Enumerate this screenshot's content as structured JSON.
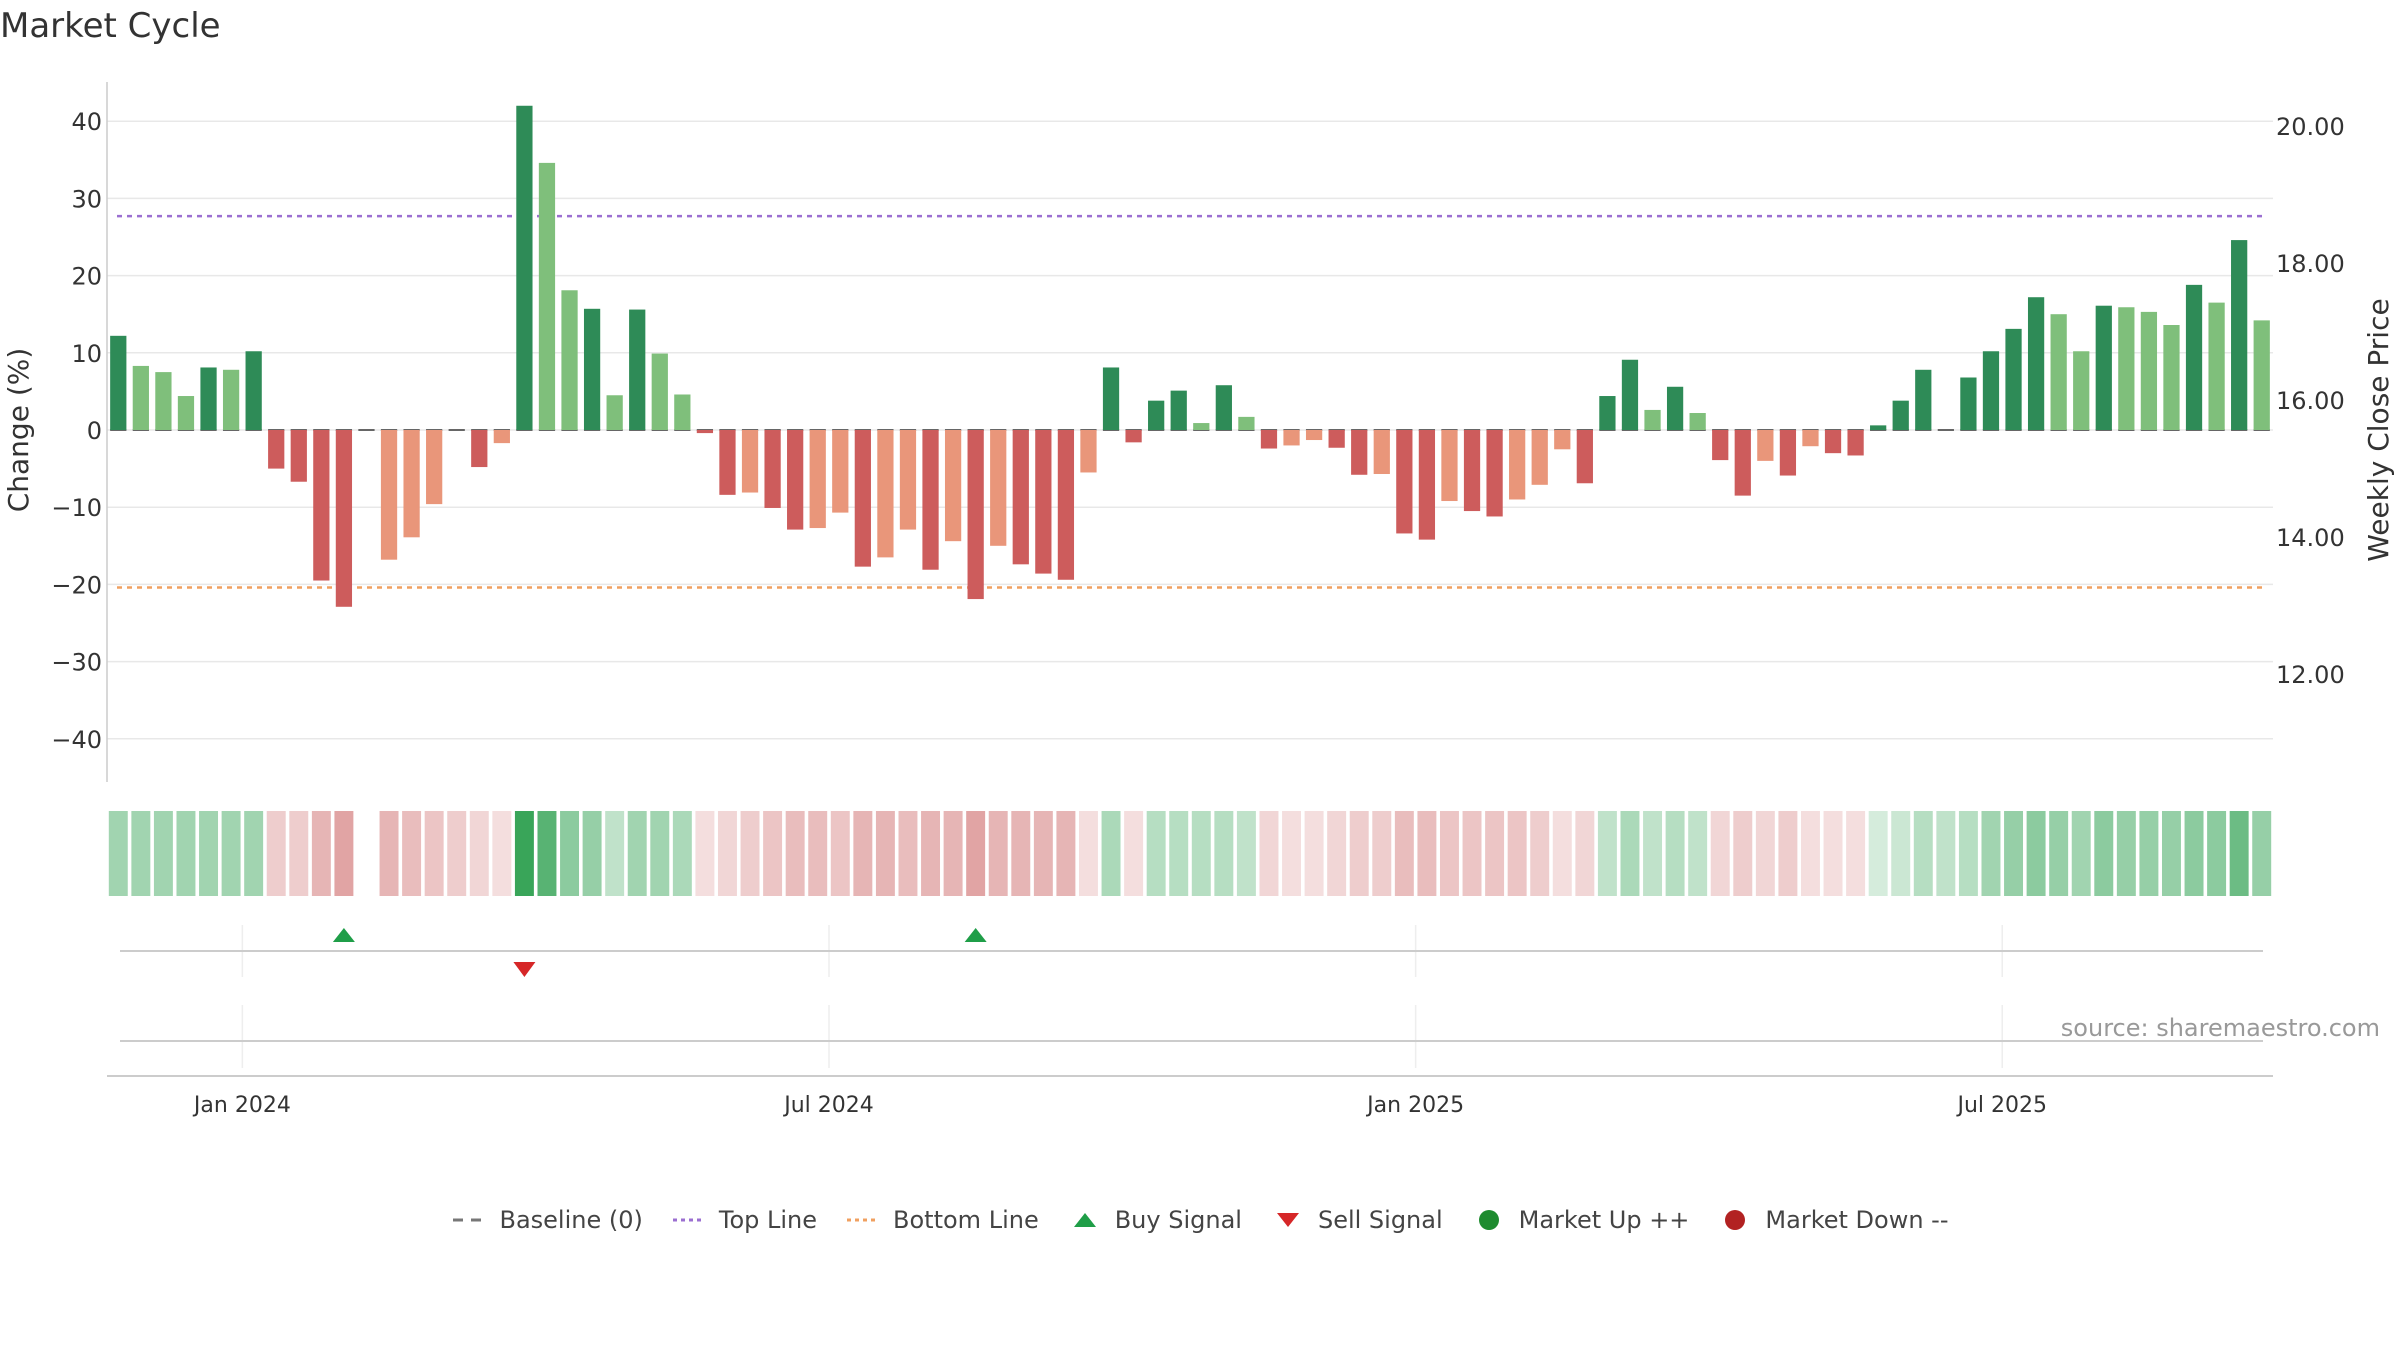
{
  "title": "Market Cycle",
  "source": "source: sharemaestro.com",
  "colors": {
    "strong_up": "#2e8b57",
    "up": "#7fbf7b",
    "strong_down": "#cd5c5c",
    "down": "#e9967a",
    "top_line": "#9b6fd1",
    "bottom_line": "#f0a060",
    "buy": "#1f9e48",
    "sell": "#d62728",
    "market_up": "#1e8b2f",
    "market_down": "#b22222"
  },
  "legend": [
    {
      "label": "Baseline (0)",
      "icon": "dash-line",
      "color": "#777777"
    },
    {
      "label": "Top Line",
      "icon": "dotted-line",
      "color": "#9b6fd1"
    },
    {
      "label": "Bottom Line",
      "icon": "dotted-line",
      "color": "#f0a060"
    },
    {
      "label": "Buy Signal",
      "icon": "triangle-up",
      "color": "#1f9e48"
    },
    {
      "label": "Sell Signal",
      "icon": "triangle-down",
      "color": "#d62728"
    },
    {
      "label": "Market Up ++",
      "icon": "circle",
      "color": "#1e8b2f"
    },
    {
      "label": "Market Down --",
      "icon": "circle",
      "color": "#b22222"
    }
  ],
  "chart_data": {
    "type": "bar",
    "title": "Market Cycle",
    "ylabel": "Change (%)",
    "y2label": "Weekly Close Price",
    "ylim": [
      -45,
      45
    ],
    "y2lim": [
      10.6,
      20.6
    ],
    "yticks": [
      40,
      30,
      20,
      10,
      0,
      -10,
      -20,
      -30,
      -40
    ],
    "ytick_labels": [
      "40",
      "30",
      "20",
      "10",
      "0",
      "−10",
      "−20",
      "−30",
      "−40"
    ],
    "y2ticks": [
      20,
      18,
      16,
      14,
      12
    ],
    "y2tick_labels": [
      "20.00",
      "18.00",
      "16.00",
      "14.00",
      "12.00"
    ],
    "xticks": [
      {
        "label": "Jan 2024",
        "index": 5.5
      },
      {
        "label": "Jul 2024",
        "index": 31.5
      },
      {
        "label": "Jan 2025",
        "index": 57.5
      },
      {
        "label": "Jul 2025",
        "index": 83.5
      }
    ],
    "top_line": 27.7,
    "bottom_line": -20.4,
    "grid": true,
    "legend_position": "bottom",
    "values": [
      12.2,
      8.3,
      7.5,
      4.4,
      8.1,
      7.8,
      10.2,
      -5,
      -6.7,
      -19.5,
      -22.9,
      0,
      -16.8,
      -13.9,
      -9.6,
      0,
      -4.8,
      -1.7,
      42,
      34.6,
      18.1,
      15.7,
      4.5,
      15.6,
      9.9,
      4.6,
      -0.4,
      -8.4,
      -8.1,
      -10.1,
      -12.9,
      -12.7,
      -10.7,
      -17.7,
      -16.5,
      -12.9,
      -18.1,
      -14.4,
      -21.9,
      -15,
      -17.4,
      -18.6,
      -19.4,
      -5.5,
      8.1,
      -1.6,
      3.8,
      5.1,
      0.9,
      5.8,
      1.7,
      -2.4,
      -2,
      -1.3,
      -2.3,
      -5.8,
      -5.7,
      -13.4,
      -14.2,
      -9.2,
      -10.5,
      -11.2,
      -9,
      -7.1,
      -2.5,
      -6.9,
      4.4,
      9.1,
      2.6,
      5.6,
      2.2,
      -3.9,
      -8.5,
      -4,
      -5.9,
      -2.1,
      -3,
      -3.3,
      0.6,
      3.8,
      7.8,
      0,
      6.8,
      10.2,
      13.1,
      17.2,
      15,
      10.2,
      16.1,
      15.9,
      15.3,
      13.6,
      18.8,
      16.5,
      24.6,
      14.2
    ],
    "strength": [
      "strong",
      "weak",
      "weak",
      "weak",
      "strong",
      "weak",
      "strong",
      "strong",
      "strong",
      "strong",
      "strong",
      "none",
      "weak",
      "weak",
      "weak",
      "none",
      "strong",
      "weak",
      "strong",
      "weak",
      "weak",
      "strong",
      "weak",
      "strong",
      "weak",
      "weak",
      "strong",
      "strong",
      "weak",
      "strong",
      "strong",
      "weak",
      "weak",
      "strong",
      "weak",
      "weak",
      "strong",
      "weak",
      "strong",
      "weak",
      "strong",
      "strong",
      "strong",
      "weak",
      "strong",
      "strong",
      "strong",
      "strong",
      "weak",
      "strong",
      "weak",
      "strong",
      "weak",
      "weak",
      "strong",
      "strong",
      "weak",
      "strong",
      "strong",
      "weak",
      "strong",
      "strong",
      "weak",
      "weak",
      "weak",
      "strong",
      "strong",
      "strong",
      "weak",
      "strong",
      "weak",
      "strong",
      "strong",
      "weak",
      "strong",
      "weak",
      "strong",
      "strong",
      "strong",
      "strong",
      "strong",
      "none",
      "strong",
      "strong",
      "strong",
      "strong",
      "weak",
      "weak",
      "strong",
      "weak",
      "weak",
      "weak",
      "strong",
      "weak",
      "strong",
      "weak"
    ],
    "heat_strip": [
      0.45,
      0.45,
      0.45,
      0.45,
      0.45,
      0.45,
      0.45,
      -0.3,
      -0.3,
      -0.45,
      -0.55,
      null,
      -0.45,
      -0.4,
      -0.35,
      -0.3,
      -0.25,
      -0.2,
      0.95,
      0.8,
      0.55,
      0.5,
      0.3,
      0.45,
      0.45,
      0.4,
      -0.2,
      -0.25,
      -0.3,
      -0.35,
      -0.4,
      -0.4,
      -0.35,
      -0.45,
      -0.45,
      -0.4,
      -0.45,
      -0.45,
      -0.55,
      -0.45,
      -0.45,
      -0.45,
      -0.45,
      -0.2,
      0.4,
      -0.2,
      0.35,
      0.35,
      0.35,
      0.35,
      0.3,
      -0.25,
      -0.2,
      -0.2,
      -0.25,
      -0.3,
      -0.3,
      -0.4,
      -0.4,
      -0.35,
      -0.35,
      -0.35,
      -0.35,
      -0.3,
      -0.2,
      -0.25,
      0.3,
      0.4,
      0.3,
      0.35,
      0.3,
      -0.25,
      -0.3,
      -0.25,
      -0.3,
      -0.2,
      -0.2,
      -0.2,
      0.2,
      0.25,
      0.35,
      0.3,
      0.35,
      0.45,
      0.5,
      0.55,
      0.5,
      0.45,
      0.55,
      0.5,
      0.5,
      0.5,
      0.55,
      0.55,
      0.7,
      0.5
    ],
    "buy_signals": [
      10,
      38
    ],
    "sell_signals": [
      18
    ]
  }
}
